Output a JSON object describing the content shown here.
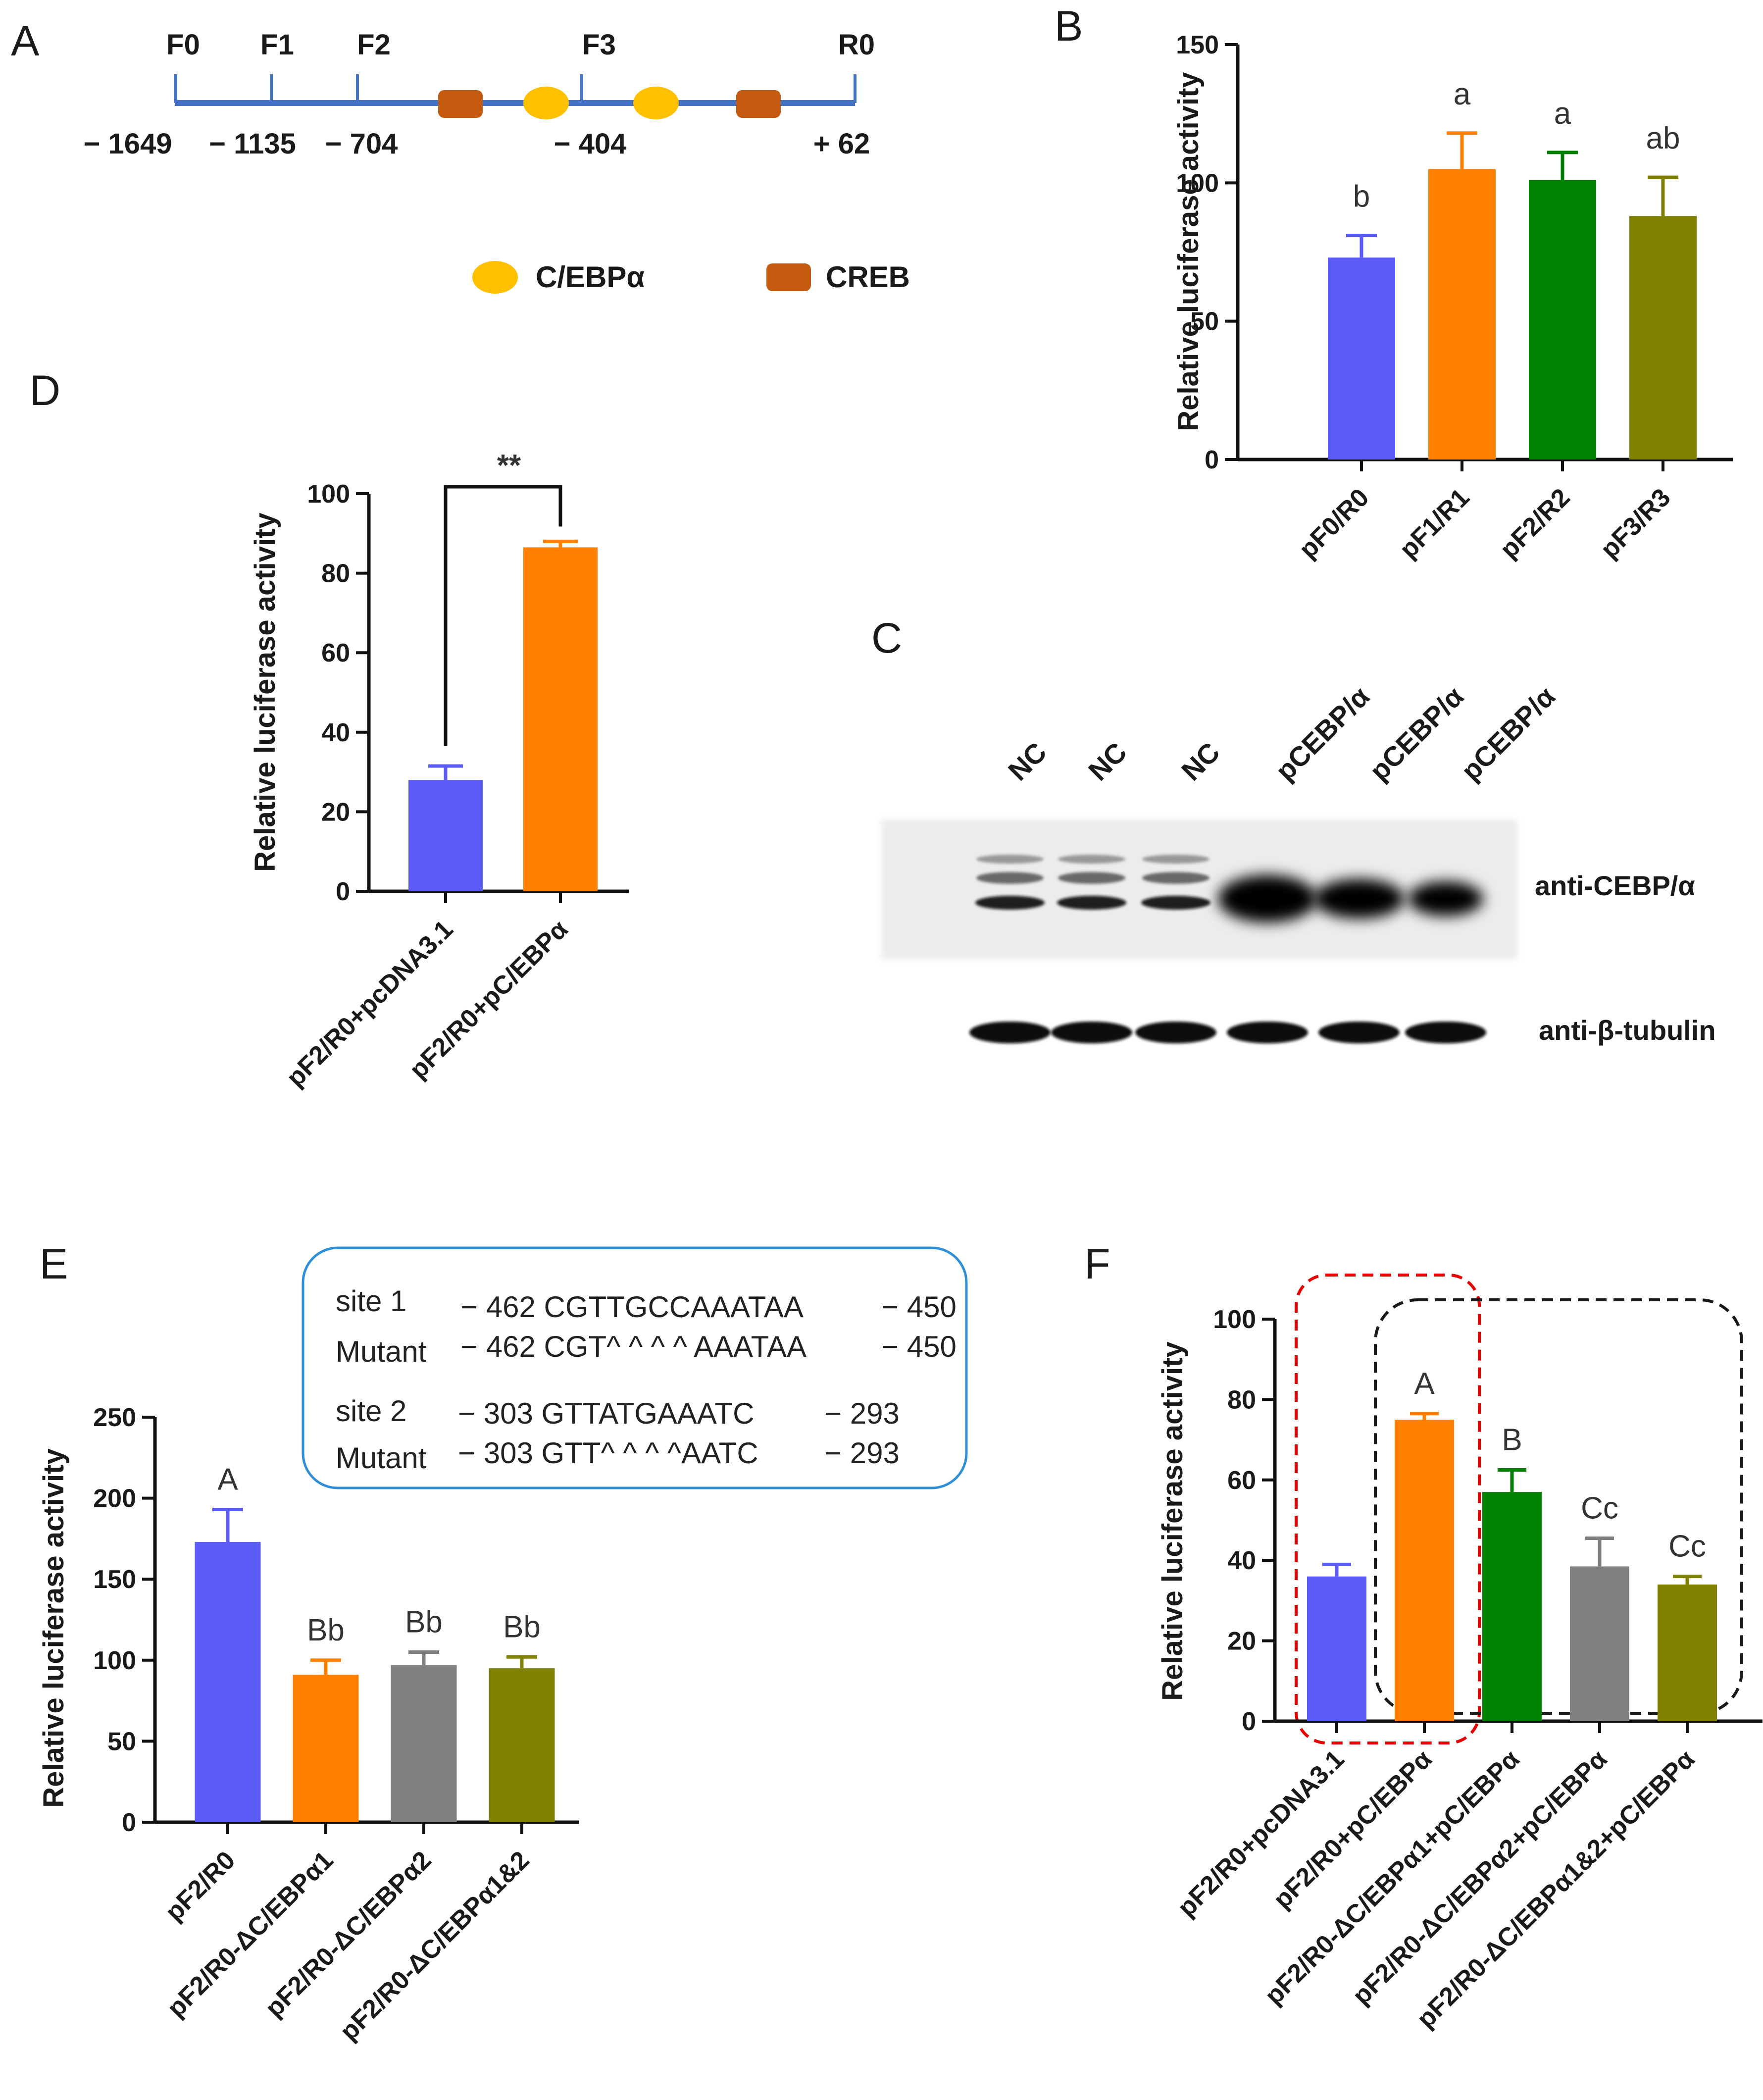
{
  "colors": {
    "blue": "#5b5bf5",
    "orange": "#ff8000",
    "green": "#008000",
    "gray": "#808080",
    "olive": "#808000",
    "cebp": "#ffc000",
    "creb": "#c55a11",
    "line": "#4472c4",
    "red_dash": "#e60000",
    "black_dash": "#1a1a1a",
    "box_border": "#2e8fd6"
  },
  "panelA": {
    "label": "A",
    "primers": [
      "F0",
      "F1",
      "F2",
      "F3",
      "R0"
    ],
    "positions": [
      "− 1649",
      "− 1135",
      "− 704",
      "− 404",
      "+ 62"
    ],
    "legend": {
      "cebp": "C/EBPα",
      "creb": "CREB"
    }
  },
  "panelC": {
    "label": "C",
    "lanes": [
      "NC",
      "NC",
      "NC",
      "pCEBP/α",
      "pCEBP/α",
      "pCEBP/α"
    ],
    "row1": "anti-CEBP/α",
    "row2": "anti-β-tubulin"
  },
  "panelE": {
    "site_box": {
      "rows": [
        [
          "site 1",
          "− 462 CGTTGCCAAATAA",
          "− 450"
        ],
        [
          "Mutant",
          "− 462 CGT^ ^ ^ ^ AAATAA",
          "− 450"
        ],
        [
          "site 2",
          "− 303 GTTATGAAATC",
          "− 293"
        ],
        [
          "Mutant",
          "− 303 GTT^ ^ ^ ^AATC",
          "− 293"
        ]
      ]
    }
  },
  "chart_data": [
    {
      "panel": "B",
      "type": "bar",
      "ylabel": "Relative luciferase activity",
      "ylim": [
        0,
        150
      ],
      "yticks": [
        0,
        50,
        100,
        150
      ],
      "categories": [
        "pF0/R0",
        "pF1/R1",
        "pF2/R2",
        "pF3/R3"
      ],
      "values": [
        73,
        105,
        101,
        88
      ],
      "errors": [
        8,
        13,
        10,
        14
      ],
      "sig": [
        "b",
        "a",
        "a",
        "ab"
      ],
      "colors": [
        "#5b5bf5",
        "#ff8000",
        "#008000",
        "#808000"
      ]
    },
    {
      "panel": "D",
      "type": "bar",
      "ylabel": "Relative luciferase activity",
      "ylim": [
        0,
        100
      ],
      "yticks": [
        0,
        20,
        40,
        60,
        80,
        100
      ],
      "categories": [
        "pF2/R0+pcDNA3.1",
        "pF2/R0+pC/EBPα"
      ],
      "values": [
        28,
        86.5
      ],
      "errors": [
        3.5,
        1.5
      ],
      "sig_bracket": "**",
      "colors": [
        "#5b5bf5",
        "#ff8000"
      ]
    },
    {
      "panel": "E",
      "type": "bar",
      "ylabel": "Relative luciferase activity",
      "ylim": [
        0,
        250
      ],
      "yticks": [
        0,
        50,
        100,
        150,
        200,
        250
      ],
      "categories": [
        "pF2/R0",
        "pF2/R0-ΔC/EBPα1",
        "pF2/R0-ΔC/EBPα2",
        "pF2/R0-ΔC/EBPα1&2"
      ],
      "values": [
        173,
        91,
        97,
        95
      ],
      "errors": [
        20,
        9,
        8,
        7
      ],
      "sig": [
        "A",
        "Bb",
        "Bb",
        "Bb"
      ],
      "colors": [
        "#5b5bf5",
        "#ff8000",
        "#808080",
        "#808000"
      ]
    },
    {
      "panel": "F",
      "type": "bar",
      "ylabel": "Relative luciferase activity",
      "ylim": [
        0,
        100
      ],
      "yticks": [
        0,
        20,
        40,
        60,
        80,
        100
      ],
      "categories": [
        "pF2/R0+pcDNA3.1",
        "pF2/R0+pC/EBPα",
        "pF2/R0-ΔC/EBPα1+pC/EBPα",
        "pF2/R0-ΔC/EBPα2+pC/EBPα",
        "pF2/R0-ΔC/EBPα1&2+pC/EBPα"
      ],
      "values": [
        36,
        75,
        57,
        38.5,
        34
      ],
      "errors": [
        3,
        1.5,
        5.5,
        7,
        2
      ],
      "sig": [
        "",
        "A",
        "B",
        "Cc",
        "Cc"
      ],
      "colors": [
        "#5b5bf5",
        "#ff8000",
        "#008000",
        "#808080",
        "#808000"
      ]
    }
  ]
}
